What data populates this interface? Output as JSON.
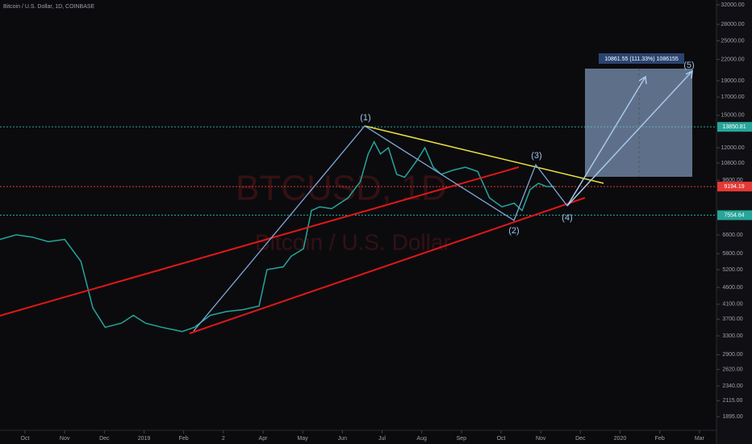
{
  "header": "Bitcoin / U.S. Dollar, 1D, COINBASE",
  "chart_data": {
    "type": "line",
    "title": "BTCUSD, 1D",
    "subtitle": "Bitcoin / U.S. Dollar",
    "log_scale": true,
    "xlim": [
      -0.63,
      17.43
    ],
    "xticks": [
      {
        "value": 0,
        "label": "Oct"
      },
      {
        "value": 1,
        "label": "Nov"
      },
      {
        "value": 2,
        "label": "Dec"
      },
      {
        "value": 3,
        "label": "2019"
      },
      {
        "value": 4,
        "label": "Feb"
      },
      {
        "value": 5,
        "label": "2"
      },
      {
        "value": 6,
        "label": "Apr"
      },
      {
        "value": 7,
        "label": "May"
      },
      {
        "value": 8,
        "label": "Jun"
      },
      {
        "value": 9,
        "label": "Jul"
      },
      {
        "value": 10,
        "label": "Aug"
      },
      {
        "value": 11,
        "label": "Sep"
      },
      {
        "value": 12,
        "label": "Oct"
      },
      {
        "value": 13,
        "label": "Nov"
      },
      {
        "value": 14,
        "label": "Dec"
      },
      {
        "value": 15,
        "label": "2020"
      },
      {
        "value": 16,
        "label": "Feb"
      },
      {
        "value": 17,
        "label": "Mar"
      }
    ],
    "ylim": [
      1736,
      33080
    ],
    "yticks": [
      {
        "value": 32000,
        "label": "32000.00"
      },
      {
        "value": 28000,
        "label": "28000.00"
      },
      {
        "value": 25000,
        "label": "25000.00"
      },
      {
        "value": 22000,
        "label": "22000.00"
      },
      {
        "value": 19000,
        "label": "19000.00"
      },
      {
        "value": 17000,
        "label": "17000.00"
      },
      {
        "value": 15000,
        "label": "15000.00"
      },
      {
        "value": 12000,
        "label": "12000.00"
      },
      {
        "value": 10800,
        "label": "10800.00"
      },
      {
        "value": 9600,
        "label": "9600.00"
      },
      {
        "value": 6600,
        "label": "6600.00"
      },
      {
        "value": 5800,
        "label": "5800.00"
      },
      {
        "value": 5200,
        "label": "5200.00"
      },
      {
        "value": 4600,
        "label": "4600.00"
      },
      {
        "value": 4100,
        "label": "4100.00"
      },
      {
        "value": 3700,
        "label": "3700.00"
      },
      {
        "value": 3300,
        "label": "3300.00"
      },
      {
        "value": 2900,
        "label": "2900.00"
      },
      {
        "value": 2620,
        "label": "2620.00"
      },
      {
        "value": 2340,
        "label": "2340.00"
      },
      {
        "value": 2115,
        "label": "2115.00"
      },
      {
        "value": 1895,
        "label": "1895.00"
      }
    ],
    "price_lines": [
      {
        "value": 13850.81,
        "color": "#26a69a"
      },
      {
        "value": 9194.19,
        "color": "#e53935"
      },
      {
        "value": 7554.64,
        "color": "#26a69a"
      }
    ],
    "series": [
      {
        "color": "#26a69a",
        "x": [
          -0.63,
          -0.22,
          0.18,
          0.59,
          1.0,
          1.41,
          1.71,
          2.02,
          2.43,
          2.73,
          3.04,
          3.45,
          3.96,
          4.27,
          4.67,
          5.08,
          5.49,
          5.9,
          6.1,
          6.51,
          6.71,
          7.02,
          7.22,
          7.43,
          7.73,
          8.14,
          8.45,
          8.65,
          8.8,
          8.96,
          9.16,
          9.37,
          9.57,
          9.88,
          10.08,
          10.29,
          10.49,
          10.8,
          11.1,
          11.41,
          11.71,
          12.02,
          12.33,
          12.53,
          12.73,
          12.94,
          13.14,
          13.35
        ],
        "values": [
          6400,
          6600,
          6500,
          6300,
          6400,
          5500,
          4000,
          3500,
          3600,
          3800,
          3600,
          3500,
          3400,
          3500,
          3800,
          3900,
          3950,
          4050,
          5200,
          5300,
          5700,
          6000,
          7800,
          8000,
          7900,
          8500,
          9500,
          11500,
          12500,
          11500,
          12000,
          10000,
          9800,
          11000,
          12000,
          10500,
          10000,
          10300,
          10500,
          10200,
          8500,
          8000,
          8200,
          7800,
          9000,
          9400,
          9200,
          9194
        ]
      }
    ],
    "annotations": [
      "(1)",
      "(2)",
      "(3)",
      "(4)",
      "(5)"
    ],
    "measure_label": "10861.55 (111.33%) 1086155"
  }
}
